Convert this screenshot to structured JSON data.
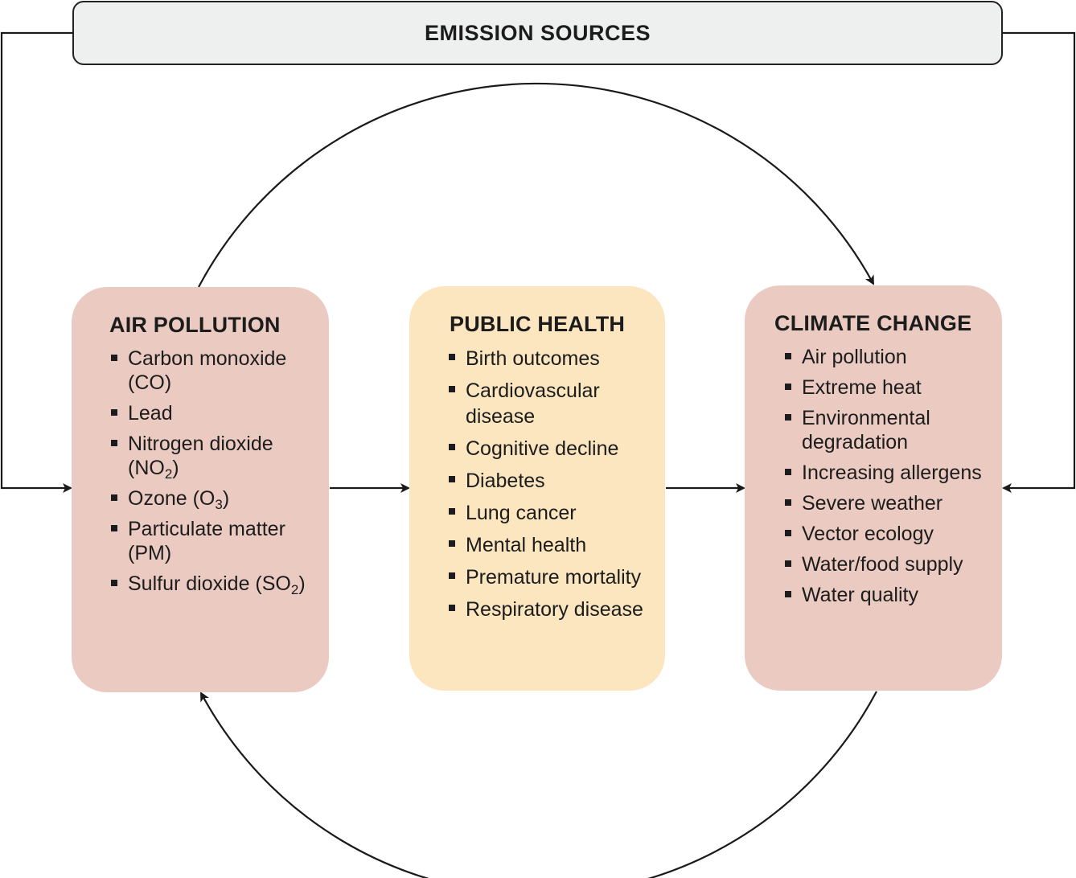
{
  "emission_sources": {
    "label": "EMISSION SOURCES"
  },
  "air_pollution": {
    "title": "AIR POLLUTION",
    "items": [
      {
        "text": "Carbon monoxide (CO)"
      },
      {
        "text": "Lead"
      },
      {
        "text": "Nitrogen dioxide (NO",
        "sub": "2",
        "after": ")"
      },
      {
        "text": "Ozone (O",
        "sub": "3",
        "after": ")"
      },
      {
        "text": "Particulate matter (PM)"
      },
      {
        "text": "Sulfur dioxide (SO",
        "sub": "2",
        "after": ")"
      }
    ]
  },
  "public_health": {
    "title": "PUBLIC HEALTH",
    "items": [
      {
        "text": "Birth outcomes"
      },
      {
        "text": "Cardiovascular disease"
      },
      {
        "text": "Cognitive decline"
      },
      {
        "text": "Diabetes"
      },
      {
        "text": "Lung cancer"
      },
      {
        "text": "Mental health"
      },
      {
        "text": "Premature mortality"
      },
      {
        "text": "Respiratory disease"
      }
    ]
  },
  "climate_change": {
    "title": "CLIMATE CHANGE",
    "items": [
      {
        "text": "Air pollution"
      },
      {
        "text": "Extreme heat"
      },
      {
        "text": "Environmental degradation"
      },
      {
        "text": "Increasing allergens"
      },
      {
        "text": "Severe weather"
      },
      {
        "text": "Vector ecology"
      },
      {
        "text": "Water/food supply"
      },
      {
        "text": "Water quality"
      }
    ]
  },
  "colors": {
    "pink_panel": "#ebcbc1",
    "yellow_panel": "#fbe6bf",
    "top_box": "#eef0ef",
    "line": "#1a1a1a"
  }
}
